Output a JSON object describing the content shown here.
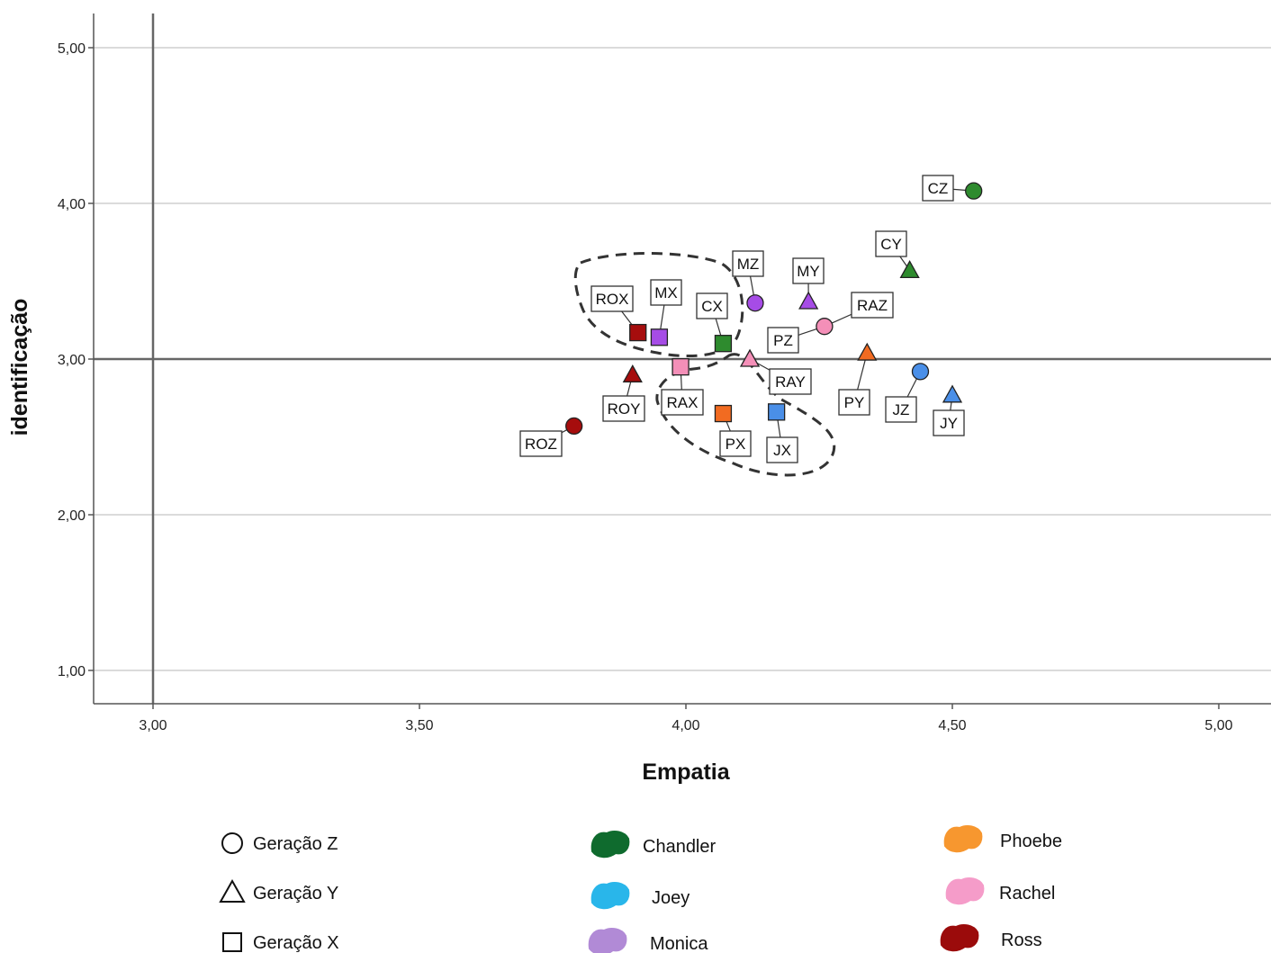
{
  "chart_data": {
    "type": "scatter",
    "title": "",
    "xlabel": "Empatia",
    "ylabel": "identificação",
    "xlim": [
      2.89,
      5.1
    ],
    "ylim": [
      0.79,
      5.22
    ],
    "x_ticks": [
      "3,00",
      "3,50",
      "4,00",
      "4,50",
      "5,00"
    ],
    "y_ticks": [
      "1,00",
      "2,00",
      "3,00",
      "4,00",
      "5,00"
    ],
    "x_tick_values": [
      3.0,
      3.5,
      4.0,
      4.5,
      5.0
    ],
    "y_tick_values": [
      1.0,
      2.0,
      3.0,
      4.0,
      5.0
    ],
    "reference_lines": {
      "x": 3.0,
      "y": 3.0
    },
    "grid": "horizontal",
    "points": [
      {
        "label": "CZ",
        "x": 4.54,
        "y": 4.08,
        "shape": "circle",
        "color": "#2e8b2e"
      },
      {
        "label": "CY",
        "x": 4.42,
        "y": 3.57,
        "shape": "triangle",
        "color": "#2e8b2e"
      },
      {
        "label": "CX",
        "x": 4.07,
        "y": 3.1,
        "shape": "square",
        "color": "#2e8b2e"
      },
      {
        "label": "MZ",
        "x": 4.13,
        "y": 3.36,
        "shape": "circle",
        "color": "#a64ce6"
      },
      {
        "label": "MY",
        "x": 4.23,
        "y": 3.37,
        "shape": "triangle",
        "color": "#a64ce6"
      },
      {
        "label": "MX",
        "x": 3.95,
        "y": 3.14,
        "shape": "square",
        "color": "#a64ce6"
      },
      {
        "label": "RAZ",
        "x": 4.26,
        "y": 3.21,
        "shape": "circle",
        "color": "#f48fb8"
      },
      {
        "label": "PZ",
        "x": 4.26,
        "y": 3.21,
        "shape": "circle",
        "color": "#f48fb8"
      },
      {
        "label": "RAY",
        "x": 4.12,
        "y": 3.0,
        "shape": "triangle",
        "color": "#f48fb8"
      },
      {
        "label": "RAX",
        "x": 3.99,
        "y": 2.95,
        "shape": "square",
        "color": "#f48fb8"
      },
      {
        "label": "PY",
        "x": 4.34,
        "y": 3.04,
        "shape": "triangle",
        "color": "#f26b21"
      },
      {
        "label": "PX",
        "x": 4.07,
        "y": 2.65,
        "shape": "square",
        "color": "#f26b21"
      },
      {
        "label": "JZ",
        "x": 4.44,
        "y": 2.92,
        "shape": "circle",
        "color": "#4a8fe8"
      },
      {
        "label": "JY",
        "x": 4.5,
        "y": 2.77,
        "shape": "triangle",
        "color": "#4a8fe8"
      },
      {
        "label": "JX",
        "x": 4.17,
        "y": 2.66,
        "shape": "square",
        "color": "#4a8fe8"
      },
      {
        "label": "ROX",
        "x": 3.91,
        "y": 3.17,
        "shape": "square",
        "color": "#a60d0d"
      },
      {
        "label": "ROY",
        "x": 3.9,
        "y": 2.9,
        "shape": "triangle",
        "color": "#a60d0d"
      },
      {
        "label": "ROZ",
        "x": 3.79,
        "y": 2.57,
        "shape": "circle",
        "color": "#a60d0d"
      }
    ],
    "legend": {
      "shapes": [
        {
          "label": "Geração Z",
          "shape": "circle"
        },
        {
          "label": "Geração Y",
          "shape": "triangle"
        },
        {
          "label": "Geração X",
          "shape": "square"
        }
      ],
      "characters": [
        {
          "label": "Chandler",
          "color": "#0f6b2e"
        },
        {
          "label": "Joey",
          "color": "#29b6ea"
        },
        {
          "label": "Monica",
          "color": "#b18ad6"
        },
        {
          "label": "Phoebe",
          "color": "#f7972f"
        },
        {
          "label": "Rachel",
          "color": "#f59cc9"
        },
        {
          "label": "Ross",
          "color": "#9b0b0b"
        }
      ]
    }
  }
}
